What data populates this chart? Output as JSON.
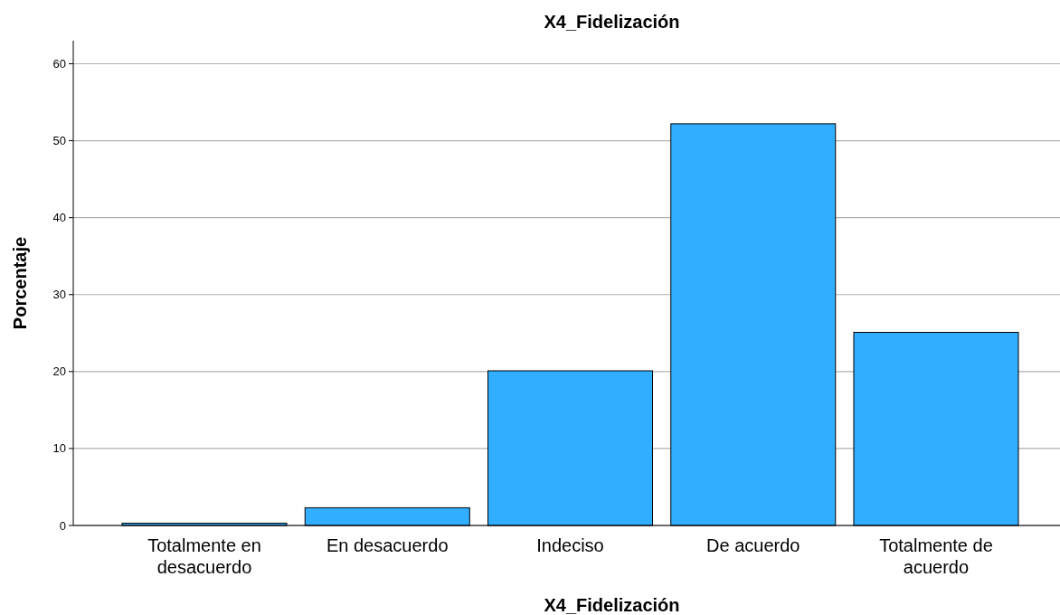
{
  "chart_data": {
    "type": "bar",
    "title": "X4_Fidelización",
    "xlabel": "X4_Fidelización",
    "ylabel": "Porcentaje",
    "categories": [
      "Totalmente en desacuerdo",
      "En desacuerdo",
      "Indeciso",
      "De acuerdo",
      "Totalmente de acuerdo"
    ],
    "values": [
      0.3,
      2.3,
      20.1,
      52.2,
      25.1
    ],
    "color": "#31aeff",
    "ylim": [
      0,
      63
    ],
    "yticks": [
      0,
      10,
      20,
      30,
      40,
      50,
      60
    ],
    "grid": "y"
  }
}
